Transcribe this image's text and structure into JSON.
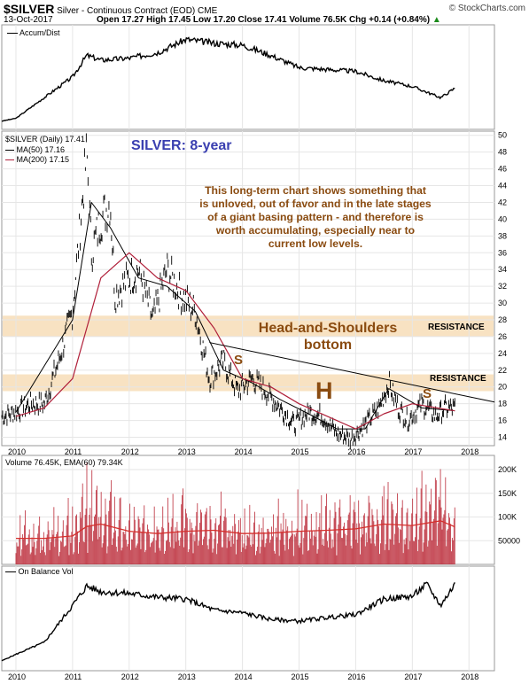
{
  "header": {
    "symbol": "$SILVER",
    "description": "Silver - Continuous Contract (EOD)",
    "exchange": "CME",
    "watermark": "© StockCharts.com",
    "date": "13-Oct-2017",
    "ohlc_text": "Open 17.27  High 17.45  Low 17.20  Close 17.41  Volume 76.5K  Chg +0.14 (+0.84%)",
    "chg_arrow": "▲"
  },
  "panels": {
    "accum_title": "Accum/Dist",
    "price_title": "$SILVER (Daily) 17.41",
    "ma50_label": "MA(50) 17.16",
    "ma200_label": "MA(200) 17.15",
    "volume_title": "Volume 76.45K, EMA(60) 79.34K",
    "obv_title": "On Balance Vol"
  },
  "annotations": {
    "chart_title": "SILVER: 8-year",
    "commentary_lines": [
      "This long-term chart shows something that",
      "is unloved, out of favor and in the late stages",
      "of a giant basing pattern - and therefore is",
      "worth accumulating, especially near to",
      "current low levels."
    ],
    "pattern_label_1": "Head-and-Shoulders",
    "pattern_label_2": "bottom",
    "resistance_upper": "RESISTANCE",
    "resistance_lower": "RESISTANCE",
    "left_shoulder": "S",
    "head": "H",
    "right_shoulder": "S"
  },
  "colors": {
    "price_bar": "#000000",
    "ma50": "#000000",
    "ma200": "#b0203a",
    "zone": "#f7ddb7",
    "pattern_text": "#8a4b10",
    "title_text": "#3a3fb0",
    "volume_bar": "#b8202f",
    "volume_ema": "#d5302d"
  },
  "chart_data": [
    {
      "type": "line",
      "panel": "Accum/Dist",
      "x": [
        "2009-10",
        "2010-01",
        "2010-07",
        "2011-01",
        "2011-04",
        "2011-07",
        "2012-01",
        "2012-07",
        "2013-01",
        "2013-07",
        "2014-01",
        "2014-07",
        "2015-01",
        "2015-07",
        "2016-01",
        "2016-07",
        "2017-01",
        "2017-07",
        "2017-10"
      ],
      "y": [
        5,
        8,
        30,
        52,
        75,
        70,
        72,
        78,
        92,
        88,
        86,
        75,
        62,
        60,
        58,
        48,
        42,
        30,
        40
      ],
      "yunit": "relative"
    },
    {
      "type": "line",
      "title": "SILVER: 8-year",
      "panel": "$SILVER (Daily)",
      "x_ticks": [
        "2010",
        "2011",
        "2012",
        "2013",
        "2014",
        "2015",
        "2016",
        "2017",
        "2018"
      ],
      "y_ticks": [
        14,
        16,
        18,
        20,
        22,
        24,
        26,
        28,
        30,
        32,
        34,
        36,
        38,
        40,
        42,
        44,
        46,
        48,
        50
      ],
      "ylim": [
        13,
        50.5
      ],
      "series": [
        {
          "name": "$SILVER",
          "x": [
            "2009-10",
            "2010-01",
            "2010-04",
            "2010-07",
            "2010-10",
            "2011-01",
            "2011-04",
            "2011-05",
            "2011-07",
            "2011-09",
            "2011-10",
            "2012-01",
            "2012-03",
            "2012-06",
            "2012-09",
            "2012-12",
            "2013-03",
            "2013-06",
            "2013-09",
            "2013-12",
            "2014-03",
            "2014-06",
            "2014-09",
            "2014-12",
            "2015-03",
            "2015-06",
            "2015-09",
            "2015-12",
            "2016-03",
            "2016-06",
            "2016-08",
            "2016-10",
            "2016-12",
            "2017-03",
            "2017-06",
            "2017-08",
            "2017-10"
          ],
          "y": [
            16.5,
            17,
            18,
            18,
            23,
            29,
            48,
            36,
            40,
            42,
            31,
            33,
            34,
            28,
            34,
            31,
            29,
            21,
            23,
            19.5,
            21,
            19.5,
            17.5,
            15.5,
            17,
            16.5,
            14.5,
            13.8,
            15.5,
            17.5,
            20.5,
            17.5,
            16,
            18,
            16.5,
            17.5,
            17.41
          ]
        },
        {
          "name": "MA(50)",
          "x": [
            "2010-01",
            "2011-01",
            "2011-05",
            "2011-09",
            "2012-03",
            "2012-09",
            "2013-03",
            "2013-09",
            "2014-03",
            "2014-09",
            "2015-03",
            "2015-09",
            "2016-03",
            "2016-08",
            "2017-03",
            "2017-10"
          ],
          "y": [
            17,
            28,
            42,
            39,
            33,
            32,
            29,
            22,
            20.5,
            18.5,
            16.8,
            15,
            15,
            19.8,
            17.5,
            17.16
          ]
        },
        {
          "name": "MA(200)",
          "x": [
            "2010-01",
            "2010-07",
            "2011-01",
            "2011-07",
            "2012-01",
            "2012-07",
            "2013-01",
            "2013-07",
            "2014-01",
            "2014-07",
            "2015-01",
            "2015-07",
            "2016-01",
            "2016-07",
            "2017-01",
            "2017-10"
          ],
          "y": [
            16.5,
            17.5,
            21,
            33,
            36,
            33,
            31.5,
            27,
            21,
            20,
            18,
            16.5,
            15,
            16.8,
            18,
            17.15
          ]
        }
      ],
      "zones": [
        {
          "label": "RESISTANCE",
          "from": 26,
          "to": 28.5
        },
        {
          "label": "RESISTANCE",
          "from": 19.5,
          "to": 21.5
        }
      ],
      "trendline": {
        "x": [
          "2013-06",
          "2018-06"
        ],
        "y": [
          25.3,
          18.2
        ]
      }
    },
    {
      "type": "bar",
      "panel": "Volume",
      "y_ticks": [
        "50000",
        "100K",
        "150K",
        "200K"
      ],
      "x": [
        "2010",
        "2010-07",
        "2011",
        "2011-04",
        "2011-07",
        "2012",
        "2012-07",
        "2013",
        "2013-07",
        "2014",
        "2014-07",
        "2015",
        "2015-07",
        "2016",
        "2016-07",
        "2017",
        "2017-07",
        "2017-10"
      ],
      "values": [
        60000,
        55000,
        70000,
        110000,
        100000,
        75000,
        70000,
        90000,
        80000,
        70000,
        72000,
        75000,
        78000,
        85000,
        95000,
        90000,
        120000,
        76450
      ],
      "ema": [
        55000,
        55000,
        60000,
        80000,
        85000,
        70000,
        65000,
        70000,
        72000,
        65000,
        66000,
        70000,
        72000,
        75000,
        85000,
        82000,
        92000,
        79340
      ]
    },
    {
      "type": "line",
      "panel": "On Balance Vol",
      "x": [
        "2009-10",
        "2010-01",
        "2010-07",
        "2011-01",
        "2011-04",
        "2011-07",
        "2012-01",
        "2012-07",
        "2013-01",
        "2013-07",
        "2014-01",
        "2014-07",
        "2015-01",
        "2015-07",
        "2016-01",
        "2016-07",
        "2017-01",
        "2017-04",
        "2017-07",
        "2017-10"
      ],
      "y": [
        5,
        12,
        25,
        65,
        86,
        80,
        78,
        74,
        72,
        60,
        57,
        50,
        48,
        52,
        55,
        72,
        75,
        88,
        65,
        88
      ],
      "yunit": "relative"
    }
  ]
}
